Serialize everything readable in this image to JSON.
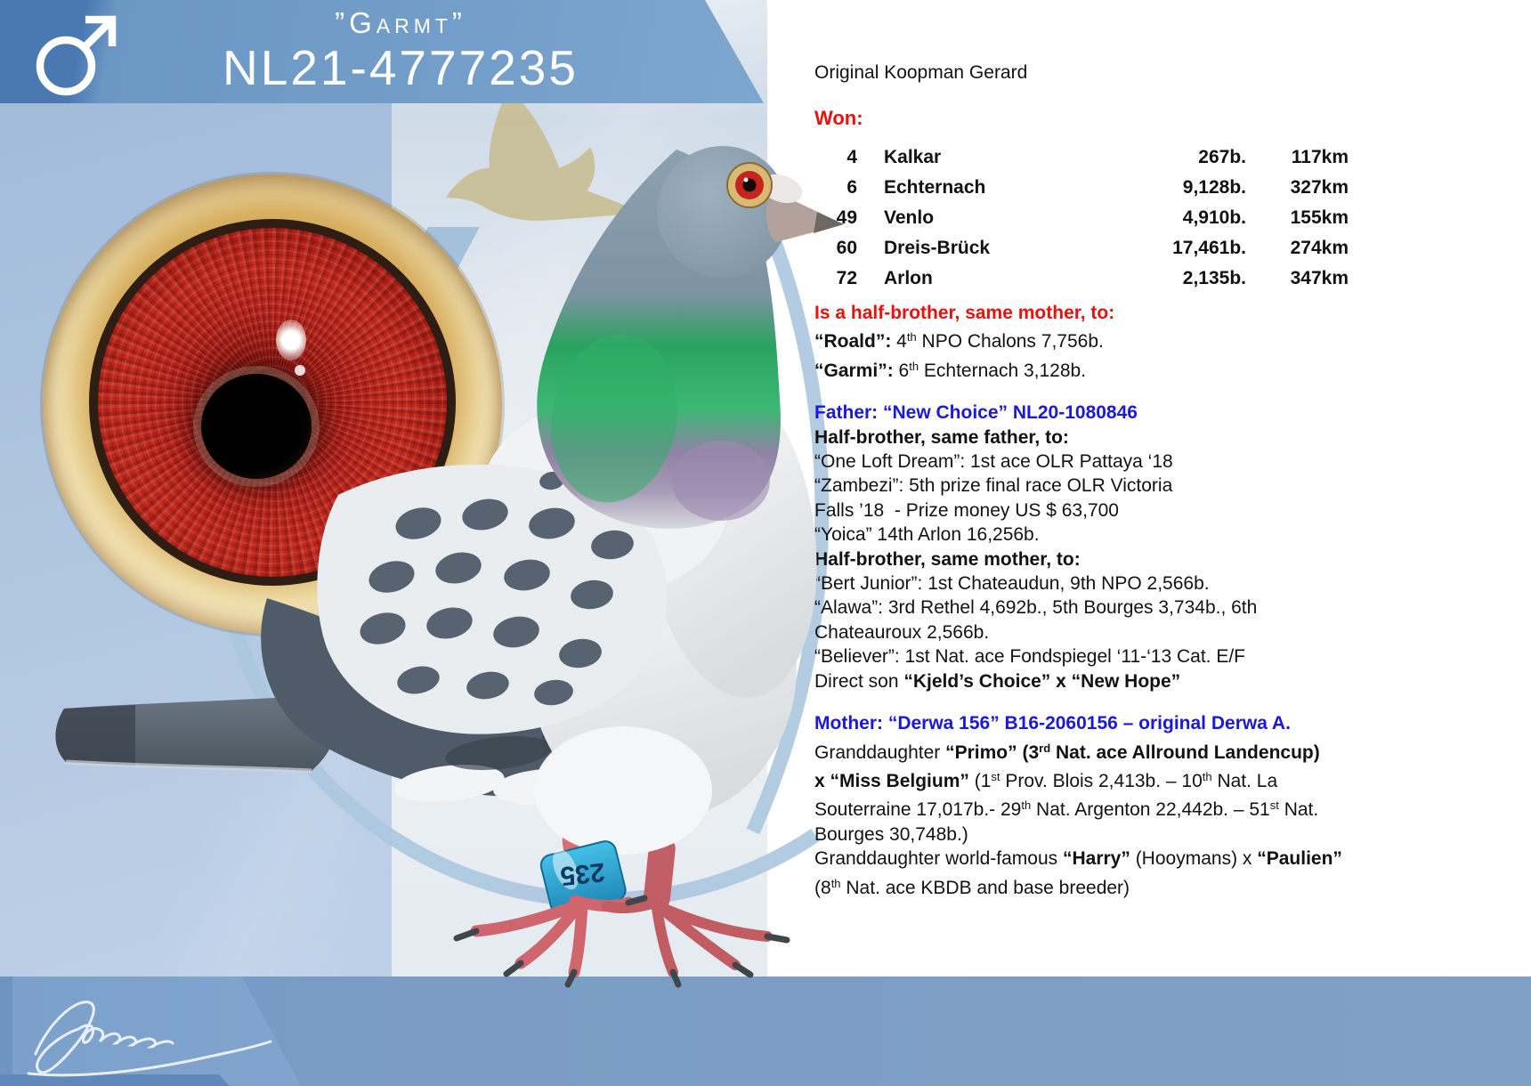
{
  "banner": {
    "nickname": "”Garmt”",
    "ring_number": "NL21-4777235"
  },
  "origin_line": "Original Koopman Gerard",
  "won_label": "Won:",
  "results": [
    {
      "place": "4",
      "race": "Kalkar",
      "birds": "267b.",
      "distance": "117km"
    },
    {
      "place": "6",
      "race": "Echternach",
      "birds": "9,128b.",
      "distance": "327km"
    },
    {
      "place": "49",
      "race": "Venlo",
      "birds": "4,910b.",
      "distance": "155km"
    },
    {
      "place": "60",
      "race": "Dreis-Brück",
      "birds": "17,461b.",
      "distance": "274km"
    },
    {
      "place": "72",
      "race": "Arlon",
      "birds": "2,135b.",
      "distance": "347km"
    }
  ],
  "pedigree": [
    {
      "c": "red",
      "seg": [
        {
          "t": "Is a half-brother, same mother, to:"
        }
      ]
    },
    {
      "seg": [
        {
          "t": "“Roald”: ",
          "b": true
        },
        {
          "t": "4"
        },
        {
          "t": "th",
          "sup": true
        },
        {
          "t": " NPO Chalons 7,756b."
        }
      ]
    },
    {
      "seg": [
        {
          "t": "“Garmi”: ",
          "b": true
        },
        {
          "t": "6"
        },
        {
          "t": "th",
          "sup": true
        },
        {
          "t": " Echternach 3,128b."
        }
      ]
    },
    {
      "c": "blue",
      "gap": true,
      "seg": [
        {
          "t": "Father: “New Choice” NL20-1080846"
        }
      ]
    },
    {
      "seg": [
        {
          "t": "Half-brother, same father, to:",
          "b": true
        }
      ]
    },
    {
      "seg": [
        {
          "t": "“One Loft Dream”: 1st ace OLR Pattaya ‘18"
        }
      ]
    },
    {
      "seg": [
        {
          "t": "“Zambezi”: 5th prize final race OLR Victoria"
        }
      ]
    },
    {
      "seg": [
        {
          "t": "Falls ’18  - Prize money US $ 63,700"
        }
      ]
    },
    {
      "seg": [
        {
          "t": "“Yoica” 14th Arlon 16,256b."
        }
      ]
    },
    {
      "seg": [
        {
          "t": "Half-brother, same mother, to:",
          "b": true
        }
      ]
    },
    {
      "seg": [
        {
          "t": "“Bert Junior”: 1st Chateaudun, 9th NPO 2,566b."
        }
      ]
    },
    {
      "seg": [
        {
          "t": "“Alawa”: 3rd Rethel 4,692b., 5th Bourges 3,734b., 6th"
        }
      ]
    },
    {
      "seg": [
        {
          "t": "Chateauroux 2,566b."
        }
      ]
    },
    {
      "seg": [
        {
          "t": "“Believer”: 1st Nat. ace Fondspiegel ‘11-‘13 Cat. E/F"
        }
      ]
    },
    {
      "seg": [
        {
          "t": "Direct son "
        },
        {
          "t": "“Kjeld’s Choice” x “New Hope”",
          "b": true
        }
      ]
    },
    {
      "c": "blue",
      "gap": true,
      "seg": [
        {
          "t": "Mother: “Derwa 156” B16-2060156 – original Derwa A."
        }
      ]
    },
    {
      "seg": [
        {
          "t": "Granddaughter "
        },
        {
          "t": "“Primo” (3",
          "b": true
        },
        {
          "t": "rd",
          "b": true,
          "sup": true
        },
        {
          "t": " Nat. ace Allround Landencup)",
          "b": true
        }
      ]
    },
    {
      "seg": [
        {
          "t": "x “Miss Belgium”",
          "b": true
        },
        {
          "t": " (1"
        },
        {
          "t": "st",
          "sup": true
        },
        {
          "t": " Prov. Blois 2,413b. – 10"
        },
        {
          "t": "th",
          "sup": true
        },
        {
          "t": " Nat. La"
        }
      ]
    },
    {
      "seg": [
        {
          "t": "Souterraine 17,017b.- 29"
        },
        {
          "t": "th",
          "sup": true
        },
        {
          "t": " Nat. Argenton 22,442b. – 51"
        },
        {
          "t": "st",
          "sup": true
        },
        {
          "t": " Nat."
        }
      ]
    },
    {
      "seg": [
        {
          "t": "Bourges 30,748b.)"
        }
      ]
    },
    {
      "seg": [
        {
          "t": "Granddaughter world-famous "
        },
        {
          "t": "“Harry”",
          "b": true
        },
        {
          "t": " (Hooymans) x "
        },
        {
          "t": "“Paulien”",
          "b": true
        }
      ]
    },
    {
      "seg": [
        {
          "t": "(8"
        },
        {
          "t": "th",
          "sup": true
        },
        {
          "t": " Nat. ace KBDB and base breeder)"
        }
      ]
    }
  ],
  "leg_band_number": "235",
  "signature": "G Koopman",
  "icons": {
    "male_symbol": "♂",
    "bird_silhouette": "flying-pigeon-silhouette"
  },
  "colors": {
    "accent_red": "#e8120d",
    "accent_blue": "#1b18dc",
    "banner_blue": "#6f9bc7",
    "dark_block_blue": "#4a78b1",
    "bottom_band_blue": "#83a5cd",
    "panel_light": "#eff2f5",
    "arc_blue": "#abc6df",
    "silhouette_gold": "#c8bf97",
    "leg_band_blue": "#2fa9d8"
  }
}
